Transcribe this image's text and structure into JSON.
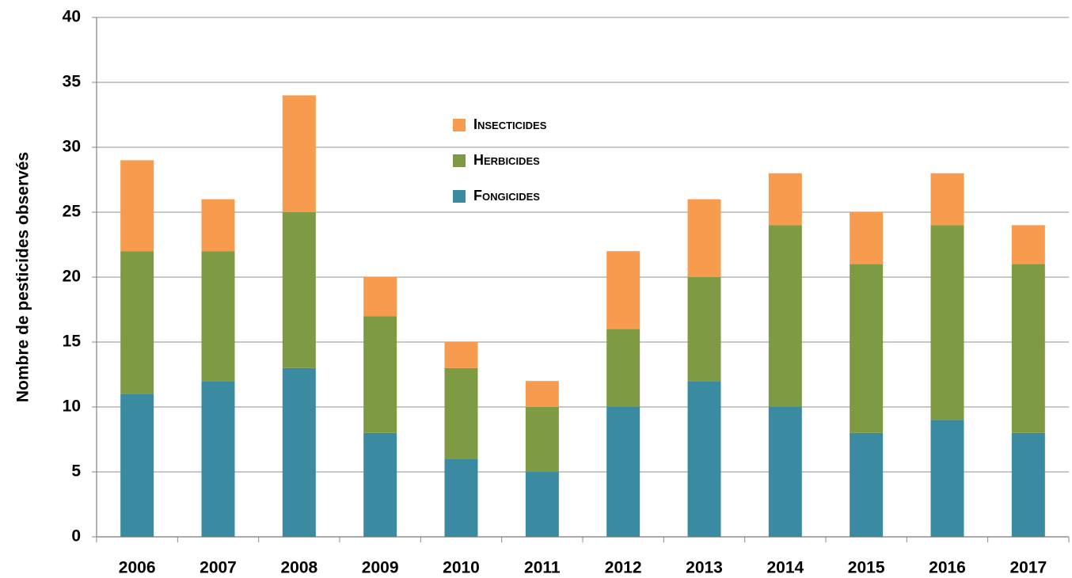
{
  "chart_data": {
    "type": "stacked_bar",
    "y_label": "Nombre de pesticides observés",
    "categories": [
      "2006",
      "2007",
      "2008",
      "2009",
      "2010",
      "2011",
      "2012",
      "2013",
      "2014",
      "2015",
      "2016",
      "2017"
    ],
    "series": [
      {
        "name": "Fongicides",
        "color": "#3a8ba2",
        "values": [
          11,
          12,
          13,
          8,
          6,
          5,
          10,
          12,
          10,
          8,
          9,
          8
        ]
      },
      {
        "name": "Herbicides",
        "color": "#7e9a43",
        "values": [
          11,
          10,
          12,
          9,
          7,
          5,
          6,
          8,
          14,
          13,
          15,
          13
        ]
      },
      {
        "name": "Insecticides",
        "color": "#f79c4e",
        "values": [
          7,
          4,
          9,
          3,
          2,
          2,
          6,
          6,
          4,
          4,
          4,
          3
        ]
      }
    ],
    "ylim": [
      0,
      40
    ],
    "yticks": [
      0,
      5,
      10,
      15,
      20,
      25,
      30,
      35,
      40
    ],
    "grid": true
  }
}
